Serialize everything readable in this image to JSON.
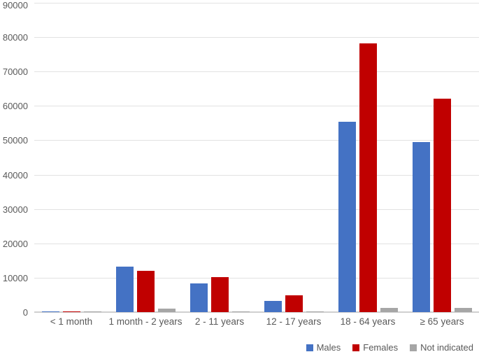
{
  "chart_data": {
    "type": "bar",
    "title": "",
    "xlabel": "",
    "ylabel": "",
    "categories": [
      "< 1 month",
      "1 month - 2 years",
      "2 - 11 years",
      "12 - 17 years",
      "18 - 64 years",
      "≥ 65 years"
    ],
    "series": [
      {
        "name": "Males",
        "color": "#4472C4",
        "values": [
          250,
          13200,
          8400,
          3300,
          55300,
          49500
        ]
      },
      {
        "name": "Females",
        "color": "#C00000",
        "values": [
          250,
          12000,
          10100,
          4900,
          78100,
          62100
        ]
      },
      {
        "name": "Not indicated",
        "color": "#A6A6A6",
        "values": [
          50,
          1000,
          250,
          100,
          1200,
          1250
        ]
      }
    ],
    "ylim": [
      0,
      90000
    ],
    "ytick_step": 10000,
    "ytick_labels": [
      "0",
      "10000",
      "20000",
      "30000",
      "40000",
      "50000",
      "60000",
      "70000",
      "80000",
      "90000"
    ],
    "grid": true,
    "legend_position": "bottom-right",
    "grid_color": "#e2e2e2",
    "axis_color": "#d0d0d0",
    "text_color": "#595959"
  }
}
